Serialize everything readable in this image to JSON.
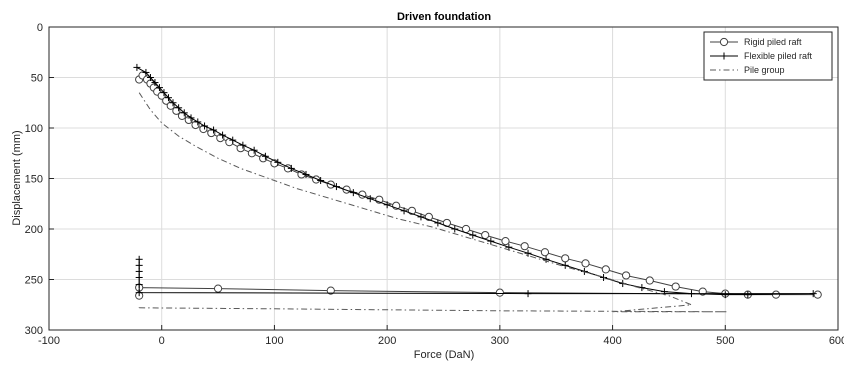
{
  "chart_data": {
    "type": "line",
    "title": "Driven foundation",
    "xlabel": "Force (DaN)",
    "ylabel": "Displacement (mm)",
    "xlim": [
      -100,
      600
    ],
    "ylim": [
      0,
      300
    ],
    "y_reversed": true,
    "xticks": [
      -100,
      0,
      100,
      200,
      300,
      400,
      500,
      600
    ],
    "yticks": [
      0,
      50,
      100,
      150,
      200,
      250,
      300
    ],
    "grid": true,
    "legend_position": "top-right",
    "series": [
      {
        "name": "Rigid piled raft",
        "style": "solid",
        "marker": "circle",
        "color": "#404040",
        "x": [
          -20,
          -17,
          -13,
          -10,
          -7,
          -4,
          0,
          4,
          8,
          13,
          18,
          24,
          30,
          37,
          44,
          52,
          60,
          70,
          80,
          90,
          100,
          112,
          124,
          137,
          150,
          164,
          178,
          193,
          208,
          222,
          237,
          253,
          270,
          287,
          305,
          322,
          340,
          358,
          376,
          394,
          412,
          433,
          456,
          480,
          500,
          520,
          545,
          582,
          300,
          150,
          50,
          -20,
          -20
        ],
        "y": [
          52,
          48,
          52,
          56,
          60,
          64,
          68,
          73,
          78,
          83,
          88,
          92,
          97,
          101,
          105,
          110,
          114,
          120,
          125,
          130,
          135,
          140,
          146,
          151,
          156,
          161,
          166,
          171,
          177,
          182,
          188,
          194,
          200,
          206,
          212,
          217,
          223,
          229,
          234,
          240,
          246,
          251,
          257,
          262,
          264,
          265,
          265,
          265,
          263,
          261,
          259,
          258,
          266
        ],
        "marker_count": 46
      },
      {
        "name": "Flexible piled raft",
        "style": "solid",
        "marker": "plus",
        "color": "#000000",
        "x": [
          -22,
          -14,
          -10,
          -6,
          -2,
          2,
          6,
          10,
          15,
          20,
          26,
          32,
          38,
          46,
          54,
          63,
          72,
          82,
          92,
          103,
          115,
          128,
          141,
          155,
          170,
          185,
          200,
          215,
          230,
          245,
          260,
          276,
          292,
          308,
          325,
          341,
          358,
          375,
          392,
          409,
          426,
          446,
          470,
          500,
          520,
          578,
          325,
          -20,
          -20,
          -20,
          -20,
          -20,
          -20
        ],
        "y": [
          40,
          45,
          50,
          55,
          60,
          65,
          70,
          75,
          80,
          85,
          90,
          94,
          98,
          102,
          107,
          112,
          117,
          122,
          128,
          134,
          140,
          146,
          152,
          158,
          164,
          170,
          176,
          182,
          188,
          194,
          200,
          206,
          212,
          218,
          224,
          230,
          236,
          242,
          248,
          254,
          258,
          262,
          264,
          265,
          265,
          264,
          264,
          263,
          255,
          248,
          242,
          236,
          230
        ]
      },
      {
        "name": "Pile group",
        "style": "dashdot",
        "marker": "none",
        "color": "#595959",
        "x": [
          -20,
          -10,
          0,
          15,
          30,
          50,
          70,
          95,
          120,
          150,
          180,
          210,
          240,
          270,
          300,
          330,
          360,
          390,
          420,
          450,
          470,
          440,
          400,
          502,
          300,
          100,
          -20,
          -20
        ],
        "y": [
          65,
          82,
          95,
          108,
          118,
          130,
          140,
          150,
          160,
          170,
          180,
          190,
          198,
          208,
          218,
          228,
          238,
          247,
          257,
          266,
          275,
          278,
          282,
          282,
          281,
          279,
          278,
          280
        ]
      }
    ]
  }
}
